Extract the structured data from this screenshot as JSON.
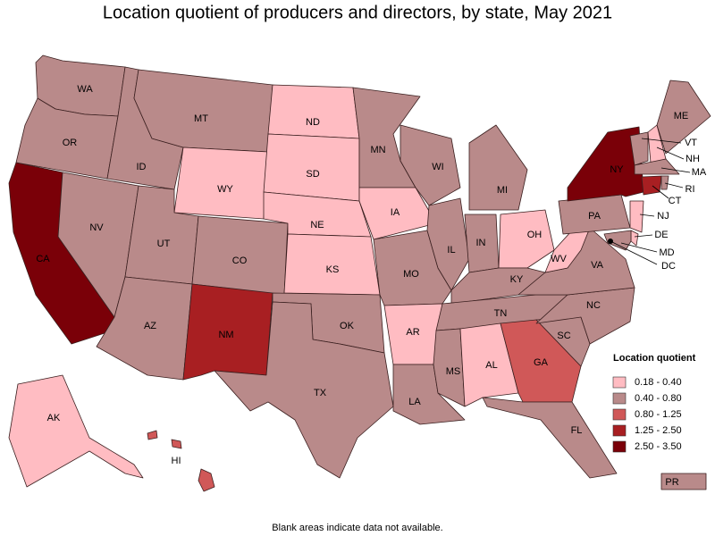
{
  "title": "Location quotient of producers and directors, by state, May 2021",
  "note": "Blank areas indicate data not available.",
  "legend": {
    "title": "Location quotient",
    "items": [
      {
        "label": "0.18 - 0.40",
        "color": "#ffbcc2"
      },
      {
        "label": "0.40 - 0.80",
        "color": "#b98a8a"
      },
      {
        "label": "0.80 - 1.25",
        "color": "#d05858"
      },
      {
        "label": "1.25 - 2.50",
        "color": "#a81f22"
      },
      {
        "label": "2.50 - 3.50",
        "color": "#7a0008"
      }
    ]
  },
  "states": [
    {
      "label": "WA",
      "color": "#b98a8a"
    },
    {
      "label": "OR",
      "color": "#b98a8a"
    },
    {
      "label": "CA",
      "color": "#7a0008"
    },
    {
      "label": "NV",
      "color": "#b98a8a"
    },
    {
      "label": "ID",
      "color": "#b98a8a"
    },
    {
      "label": "MT",
      "color": "#b98a8a"
    },
    {
      "label": "WY",
      "color": "#ffbcc2"
    },
    {
      "label": "UT",
      "color": "#b98a8a"
    },
    {
      "label": "CO",
      "color": "#b98a8a"
    },
    {
      "label": "AZ",
      "color": "#b98a8a"
    },
    {
      "label": "NM",
      "color": "#a81f22"
    },
    {
      "label": "ND",
      "color": "#ffbcc2"
    },
    {
      "label": "SD",
      "color": "#ffbcc2"
    },
    {
      "label": "NE",
      "color": "#ffbcc2"
    },
    {
      "label": "KS",
      "color": "#ffbcc2"
    },
    {
      "label": "OK",
      "color": "#b98a8a"
    },
    {
      "label": "TX",
      "color": "#b98a8a"
    },
    {
      "label": "MN",
      "color": "#b98a8a"
    },
    {
      "label": "IA",
      "color": "#ffbcc2"
    },
    {
      "label": "MO",
      "color": "#b98a8a"
    },
    {
      "label": "AR",
      "color": "#ffbcc2"
    },
    {
      "label": "LA",
      "color": "#b98a8a"
    },
    {
      "label": "WI",
      "color": "#b98a8a"
    },
    {
      "label": "IL",
      "color": "#b98a8a"
    },
    {
      "label": "MI",
      "color": "#b98a8a"
    },
    {
      "label": "IN",
      "color": "#b98a8a"
    },
    {
      "label": "OH",
      "color": "#ffbcc2"
    },
    {
      "label": "KY",
      "color": "#b98a8a"
    },
    {
      "label": "TN",
      "color": "#b98a8a"
    },
    {
      "label": "MS",
      "color": "#b98a8a"
    },
    {
      "label": "AL",
      "color": "#ffbcc2"
    },
    {
      "label": "GA",
      "color": "#d05858"
    },
    {
      "label": "FL",
      "color": "#b98a8a"
    },
    {
      "label": "SC",
      "color": "#b98a8a"
    },
    {
      "label": "NC",
      "color": "#b98a8a"
    },
    {
      "label": "VA",
      "color": "#b98a8a"
    },
    {
      "label": "WV",
      "color": "#ffbcc2"
    },
    {
      "label": "PA",
      "color": "#b98a8a"
    },
    {
      "label": "NY",
      "color": "#7a0008"
    },
    {
      "label": "VT",
      "color": "#b98a8a"
    },
    {
      "label": "NH",
      "color": "#ffbcc2"
    },
    {
      "label": "ME",
      "color": "#b98a8a"
    },
    {
      "label": "MA",
      "color": "#b98a8a"
    },
    {
      "label": "CT",
      "color": "#a81f22"
    },
    {
      "label": "RI",
      "color": "#b98a8a"
    },
    {
      "label": "NJ",
      "color": "#ffbcc2"
    },
    {
      "label": "DE",
      "color": "#ffbcc2"
    },
    {
      "label": "MD",
      "color": "#b98a8a"
    },
    {
      "label": "DC",
      "color": "#000000"
    },
    {
      "label": "AK",
      "color": "#ffbcc2"
    },
    {
      "label": "HI",
      "color": "#d05858"
    },
    {
      "label": "PR",
      "color": "#b98a8a"
    }
  ]
}
